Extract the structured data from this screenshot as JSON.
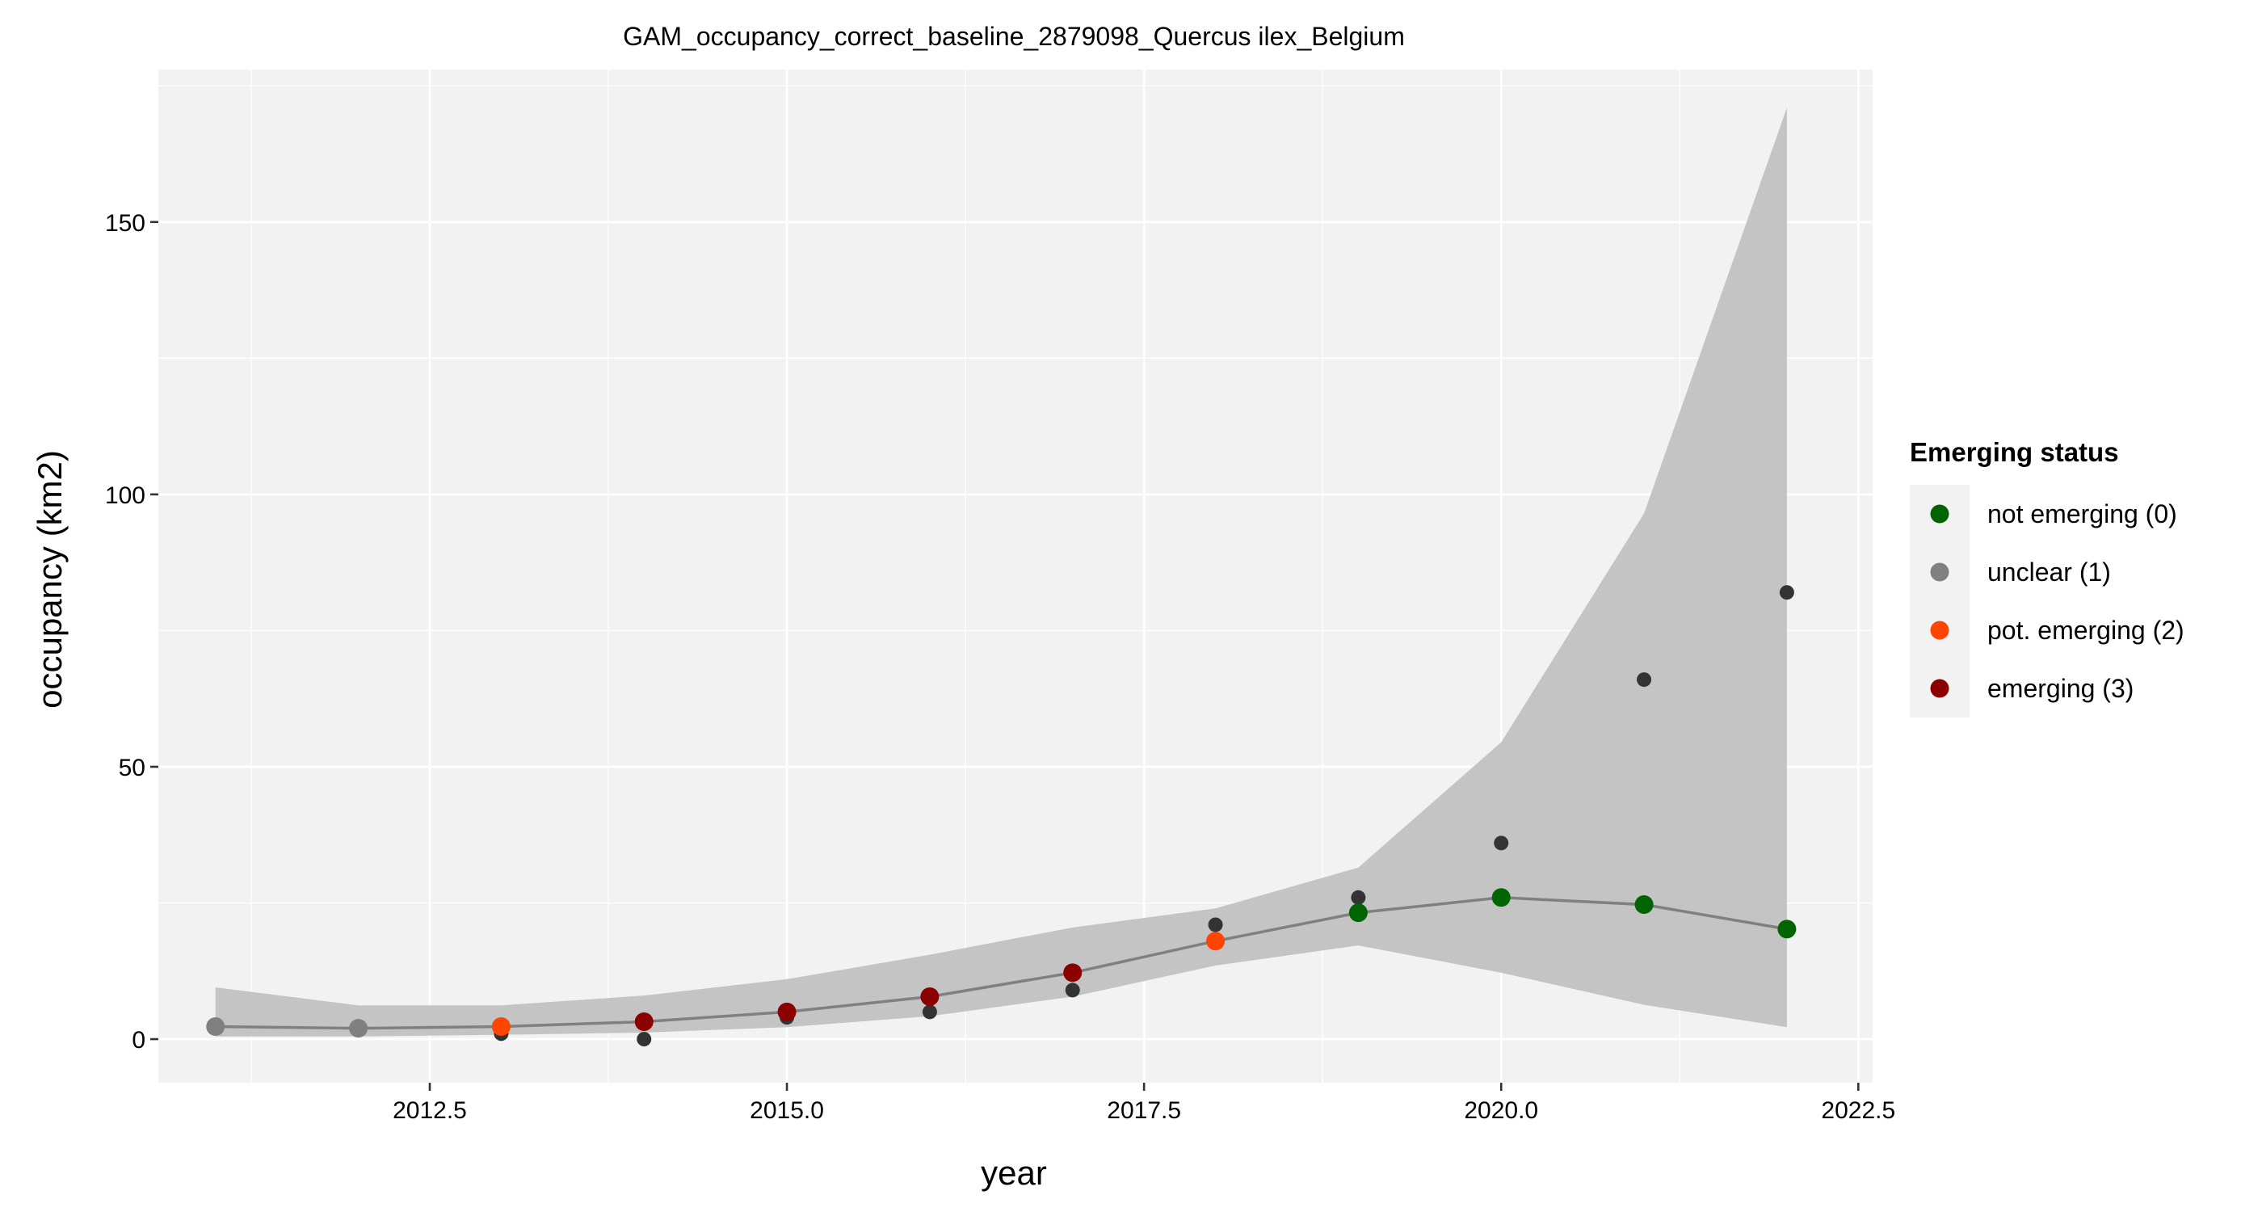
{
  "chart_data": {
    "type": "line",
    "title": "GAM_occupancy_correct_baseline_2879098_Quercus ilex_Belgium",
    "xlabel": "year",
    "ylabel": "occupancy (km2)",
    "xlim": [
      2010.6,
      2022.6
    ],
    "ylim": [
      -8,
      178
    ],
    "x_ticks": [
      2012.5,
      2015.0,
      2017.5,
      2020.0,
      2022.5
    ],
    "x_tick_labels": [
      "2012.5",
      "2015.0",
      "2017.5",
      "2020.0",
      "2022.5"
    ],
    "y_ticks": [
      0,
      50,
      100,
      150
    ],
    "y_tick_labels": [
      "0",
      "50",
      "100",
      "150"
    ],
    "grid": true,
    "background": "#f2f2f2",
    "confidence_band": {
      "x": [
        2011,
        2012,
        2013,
        2014,
        2015,
        2016,
        2017,
        2018,
        2019,
        2020,
        2021,
        2022
      ],
      "lower": [
        0.5,
        0.5,
        0.8,
        1.2,
        2.2,
        4.2,
        7.8,
        13.5,
        17.2,
        12.2,
        6.3,
        2.2
      ],
      "upper": [
        9.5,
        6.2,
        6.2,
        8.0,
        11.0,
        15.5,
        20.5,
        24.0,
        31.5,
        54.5,
        96.5,
        171.0
      ],
      "color": "#c4c4c4"
    },
    "fitted_line": {
      "x": [
        2011,
        2012,
        2013,
        2014,
        2015,
        2016,
        2017,
        2018,
        2019,
        2020,
        2021,
        2022
      ],
      "y": [
        2.3,
        2.0,
        2.3,
        3.2,
        5.0,
        7.8,
        12.2,
        18.0,
        23.2,
        26.0,
        24.7,
        20.2
      ],
      "color": "#808080"
    },
    "observed": {
      "x": [
        2013,
        2014,
        2015,
        2016,
        2017,
        2018,
        2019,
        2020,
        2021,
        2022
      ],
      "y": [
        1,
        0,
        4,
        5,
        9,
        21,
        26,
        36,
        66,
        82
      ],
      "color": "#333333"
    },
    "status_points": [
      {
        "x": 2011,
        "y": 2.3,
        "status": 1
      },
      {
        "x": 2012,
        "y": 2.0,
        "status": 1
      },
      {
        "x": 2013,
        "y": 2.3,
        "status": 2
      },
      {
        "x": 2014,
        "y": 3.2,
        "status": 3
      },
      {
        "x": 2015,
        "y": 5.0,
        "status": 3
      },
      {
        "x": 2016,
        "y": 7.8,
        "status": 3
      },
      {
        "x": 2017,
        "y": 12.2,
        "status": 3
      },
      {
        "x": 2018,
        "y": 18.0,
        "status": 2
      },
      {
        "x": 2019,
        "y": 23.2,
        "status": 0
      },
      {
        "x": 2020,
        "y": 26.0,
        "status": 0
      },
      {
        "x": 2021,
        "y": 24.7,
        "status": 0
      },
      {
        "x": 2022,
        "y": 20.2,
        "status": 0
      }
    ],
    "legend": {
      "title": "Emerging status",
      "position": "right",
      "entries": [
        {
          "label": "not emerging (0)",
          "status": 0,
          "color": "#006400"
        },
        {
          "label": "unclear (1)",
          "status": 1,
          "color": "#808080"
        },
        {
          "label": "pot. emerging (2)",
          "status": 2,
          "color": "#ff4500"
        },
        {
          "label": "emerging (3)",
          "status": 3,
          "color": "#8b0000"
        }
      ]
    }
  }
}
